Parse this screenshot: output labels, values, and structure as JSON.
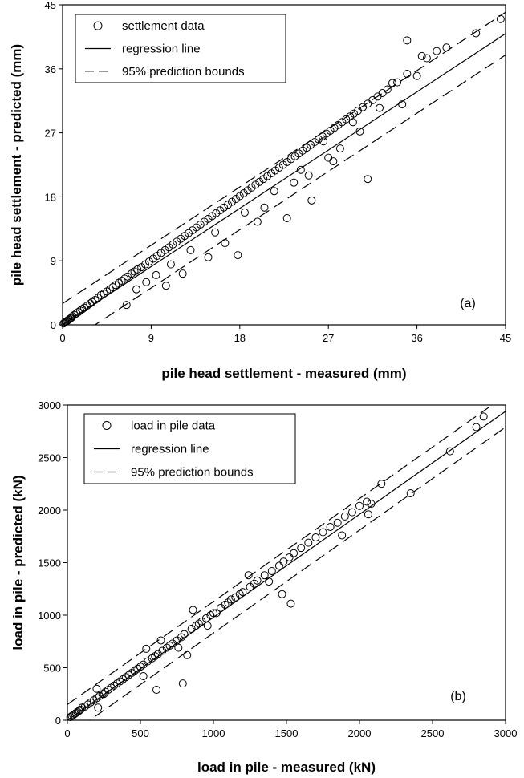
{
  "chart_data": [
    {
      "type": "scatter",
      "panel_label": "(a)",
      "xlabel": "pile head settlement - measured (mm)",
      "ylabel": "pile head settlement - predicted (mm)",
      "xlim": [
        0,
        45
      ],
      "ylim": [
        0,
        45
      ],
      "xticks": [
        "0",
        "9",
        "18",
        "27",
        "36",
        "45"
      ],
      "yticks": [
        "0",
        "9",
        "18",
        "27",
        "36",
        "45"
      ],
      "grid": false,
      "legend_position": "top-left",
      "legend": [
        "settlement data",
        "regression line",
        "95% prediction bounds"
      ],
      "regression_line": {
        "slope": 0.91,
        "intercept": 0.0
      },
      "prediction_bounds": {
        "upper_offset": 3.0,
        "lower_offset": -3.0
      },
      "series": [
        {
          "name": "settlement data",
          "x": [
            0.1,
            0.2,
            0.3,
            0.4,
            0.5,
            0.6,
            0.7,
            0.8,
            0.9,
            1.0,
            1.2,
            1.4,
            1.6,
            1.8,
            2.0,
            2.2,
            2.5,
            2.8,
            3.0,
            3.3,
            3.6,
            3.9,
            4.2,
            4.5,
            4.8,
            5.1,
            5.4,
            5.7,
            6.0,
            6.3,
            6.6,
            7.0,
            7.3,
            7.6,
            8.0,
            8.4,
            8.8,
            9.2,
            9.6,
            10.0,
            10.4,
            10.8,
            11.2,
            11.6,
            12.0,
            12.4,
            12.8,
            13.2,
            13.6,
            14.0,
            14.4,
            14.8,
            15.2,
            15.6,
            16.0,
            16.4,
            16.8,
            17.2,
            17.6,
            18.0,
            18.4,
            18.8,
            19.2,
            19.6,
            20.0,
            20.4,
            20.8,
            21.2,
            21.6,
            22.0,
            22.4,
            22.8,
            23.2,
            23.6,
            24.0,
            24.4,
            24.8,
            25.2,
            25.6,
            26.0,
            26.4,
            26.8,
            27.2,
            27.6,
            28.0,
            28.4,
            28.8,
            29.2,
            29.6,
            30.0,
            30.5,
            31.0,
            31.5,
            32.0,
            32.5,
            33.0,
            34.0,
            35.0,
            36.0,
            37.0,
            38.0,
            39.0,
            42.0,
            44.5,
            6.5,
            10.5,
            12.2,
            14.8,
            16.5,
            17.8,
            19.8,
            22.8,
            25.3,
            31.0,
            35.0,
            23.5,
            25.0,
            27.5,
            28.2,
            30.2,
            32.2,
            34.5,
            18.5,
            20.5,
            21.5,
            26.5,
            29.5,
            33.5,
            36.5,
            11.0,
            13.0,
            15.5,
            24.2,
            27.0,
            8.5,
            9.5,
            7.5
          ],
          "y": [
            0.2,
            0.3,
            0.4,
            0.5,
            0.6,
            0.7,
            0.8,
            0.9,
            1.0,
            1.2,
            1.4,
            1.6,
            1.8,
            2.0,
            2.2,
            2.4,
            2.7,
            3.0,
            3.2,
            3.5,
            3.8,
            4.2,
            4.4,
            4.7,
            5.0,
            5.3,
            5.6,
            5.9,
            6.2,
            6.5,
            6.8,
            7.2,
            7.5,
            7.8,
            8.1,
            8.5,
            8.9,
            9.3,
            9.7,
            10.1,
            10.5,
            10.9,
            11.3,
            11.7,
            12.1,
            12.5,
            12.9,
            13.3,
            13.7,
            14.1,
            14.5,
            14.9,
            15.3,
            15.7,
            16.1,
            16.5,
            16.9,
            17.3,
            17.7,
            18.1,
            18.5,
            18.9,
            19.3,
            19.7,
            20.1,
            20.5,
            20.9,
            21.3,
            21.7,
            22.1,
            22.5,
            22.9,
            23.3,
            23.7,
            24.1,
            24.5,
            24.9,
            25.3,
            25.7,
            26.1,
            26.5,
            26.9,
            27.3,
            27.7,
            28.1,
            28.5,
            28.9,
            29.3,
            29.7,
            30.1,
            30.6,
            31.1,
            31.6,
            32.1,
            32.6,
            33.1,
            34.1,
            35.3,
            35.0,
            37.5,
            38.5,
            39.0,
            41.0,
            43.0,
            2.8,
            5.5,
            7.2,
            9.5,
            11.5,
            9.8,
            14.5,
            15.0,
            17.5,
            20.5,
            40.0,
            20.0,
            21.0,
            23.0,
            24.8,
            27.2,
            30.5,
            31.0,
            15.8,
            16.5,
            18.8,
            25.8,
            28.5,
            34.0,
            37.8,
            8.5,
            10.5,
            13.0,
            21.8,
            23.5,
            6.0,
            7.0,
            5.0
          ]
        }
      ]
    },
    {
      "type": "scatter",
      "panel_label": "(b)",
      "xlabel": "load in pile - measured (kN)",
      "ylabel": "load in pile - predicted (kN)",
      "xlim": [
        0,
        3000
      ],
      "ylim": [
        0,
        3000
      ],
      "xticks": [
        "0",
        "500",
        "1000",
        "1500",
        "2000",
        "2500",
        "3000"
      ],
      "yticks": [
        "0",
        "500",
        "1000",
        "1500",
        "2000",
        "2500",
        "3000"
      ],
      "grid": false,
      "legend_position": "top-left",
      "legend": [
        "load in pile data",
        "regression line",
        "95% prediction bounds"
      ],
      "regression_line": {
        "slope": 0.98,
        "intercept": 0
      },
      "prediction_bounds": {
        "upper_offset": 150,
        "lower_offset": -150
      },
      "series": [
        {
          "name": "load in pile data",
          "x": [
            20,
            30,
            40,
            50,
            60,
            70,
            80,
            90,
            100,
            120,
            140,
            160,
            180,
            200,
            220,
            240,
            260,
            280,
            300,
            320,
            340,
            360,
            380,
            400,
            420,
            440,
            460,
            480,
            500,
            520,
            550,
            580,
            600,
            620,
            650,
            680,
            700,
            720,
            750,
            780,
            800,
            850,
            880,
            900,
            920,
            950,
            980,
            1000,
            1050,
            1080,
            1100,
            1150,
            1180,
            1200,
            1250,
            1280,
            1300,
            1350,
            1400,
            1450,
            1480,
            1520,
            1550,
            1600,
            1650,
            1700,
            1750,
            1800,
            1850,
            1900,
            1950,
            2000,
            2050,
            2080,
            2150,
            2350,
            2620,
            2800,
            2850,
            1470,
            1530,
            610,
            790,
            200,
            210,
            250,
            520,
            540,
            640,
            760,
            820,
            860,
            960,
            1020,
            1120,
            1240,
            1380,
            1880,
            2060
          ],
          "y": [
            30,
            40,
            50,
            60,
            70,
            80,
            90,
            100,
            120,
            130,
            150,
            170,
            190,
            210,
            230,
            250,
            270,
            290,
            310,
            330,
            350,
            370,
            390,
            410,
            430,
            450,
            470,
            490,
            510,
            530,
            560,
            590,
            610,
            630,
            660,
            690,
            710,
            730,
            760,
            790,
            820,
            870,
            900,
            920,
            940,
            970,
            1000,
            1020,
            1070,
            1100,
            1120,
            1170,
            1200,
            1220,
            1270,
            1300,
            1330,
            1380,
            1420,
            1470,
            1510,
            1550,
            1590,
            1640,
            1690,
            1740,
            1790,
            1840,
            1880,
            1940,
            1980,
            2040,
            2080,
            2060,
            2250,
            2160,
            2560,
            2790,
            2890,
            1200,
            1110,
            290,
            350,
            300,
            120,
            250,
            420,
            680,
            760,
            690,
            620,
            1050,
            900,
            1020,
            1150,
            1380,
            1320,
            1760,
            1960
          ]
        }
      ]
    }
  ]
}
